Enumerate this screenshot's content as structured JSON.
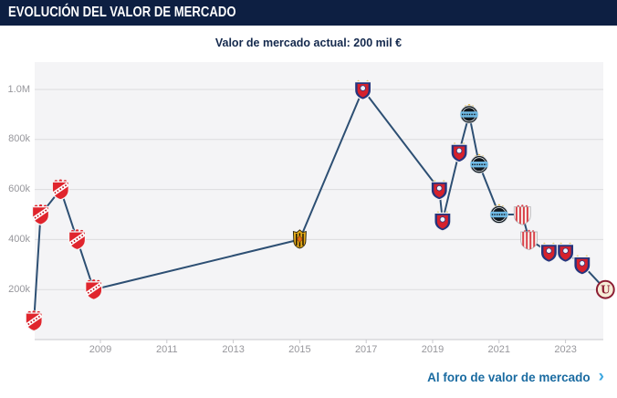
{
  "header": {
    "title": "EVOLUCIÓN DEL VALOR DE MERCADO"
  },
  "current_value": {
    "text": "Valor de mercado actual: 200 mil €"
  },
  "footer": {
    "link_label": "Al foro de valor de mercado",
    "chevron_icon": "›"
  },
  "colors": {
    "header_bg": "#0d1f42",
    "header_text": "#ffffff",
    "subtitle_text": "#14294d",
    "line": "#2d4f73",
    "plot_bg": "#f4f4f6",
    "gridline": "#dcdcde",
    "axis_line": "#c8c8cc",
    "axis_label": "#97979c",
    "link": "#1a6ba1",
    "chevron": "#3ea8e0"
  },
  "chart_data": {
    "type": "line",
    "title": "Evolución del valor de mercado",
    "subtitle": "Valor de mercado actual: 200 mil €",
    "currency": "EUR",
    "xlabel": "",
    "ylabel": "",
    "x_ticks": [
      "2009",
      "2011",
      "2013",
      "2015",
      "2017",
      "2019",
      "2021",
      "2023"
    ],
    "y_ticks": [
      {
        "label": "1.0M",
        "value": 1000000
      },
      {
        "label": "800k",
        "value": 800000
      },
      {
        "label": "600k",
        "value": 600000
      },
      {
        "label": "400k",
        "value": 400000
      },
      {
        "label": "200k",
        "value": 200000
      }
    ],
    "xlim": [
      2007.0,
      2024.3
    ],
    "ylim": [
      0,
      1110000
    ],
    "grid": true,
    "legend": false,
    "marker_style": "club-crest",
    "points": [
      {
        "year": 2007.0,
        "value_eur": 75000,
        "club": "independiente"
      },
      {
        "year": 2007.2,
        "value_eur": 500000,
        "club": "independiente"
      },
      {
        "year": 2007.8,
        "value_eur": 600000,
        "club": "independiente"
      },
      {
        "year": 2008.3,
        "value_eur": 400000,
        "club": "independiente"
      },
      {
        "year": 2008.8,
        "value_eur": 200000,
        "club": "independiente"
      },
      {
        "year": 2015.0,
        "value_eur": 400000,
        "club": "gold-eagle"
      },
      {
        "year": 2016.9,
        "value_eur": 1000000,
        "club": "cerro-porteno"
      },
      {
        "year": 2019.2,
        "value_eur": 600000,
        "club": "cerro-porteno"
      },
      {
        "year": 2019.3,
        "value_eur": 475000,
        "club": "cerro-porteno"
      },
      {
        "year": 2019.8,
        "value_eur": 750000,
        "club": "cerro-porteno"
      },
      {
        "year": 2020.1,
        "value_eur": 900000,
        "club": "gremio"
      },
      {
        "year": 2020.4,
        "value_eur": 700000,
        "club": "gremio"
      },
      {
        "year": 2021.0,
        "value_eur": 500000,
        "club": "gremio"
      },
      {
        "year": 2021.7,
        "value_eur": 500000,
        "club": "red-white-striped"
      },
      {
        "year": 2021.9,
        "value_eur": 400000,
        "club": "red-white-striped"
      },
      {
        "year": 2022.5,
        "value_eur": 350000,
        "club": "cerro-porteno"
      },
      {
        "year": 2023.0,
        "value_eur": 350000,
        "club": "cerro-porteno"
      },
      {
        "year": 2023.5,
        "value_eur": 300000,
        "club": "cerro-porteno"
      },
      {
        "year": 2024.2,
        "value_eur": 200000,
        "club": "universitario"
      }
    ]
  }
}
